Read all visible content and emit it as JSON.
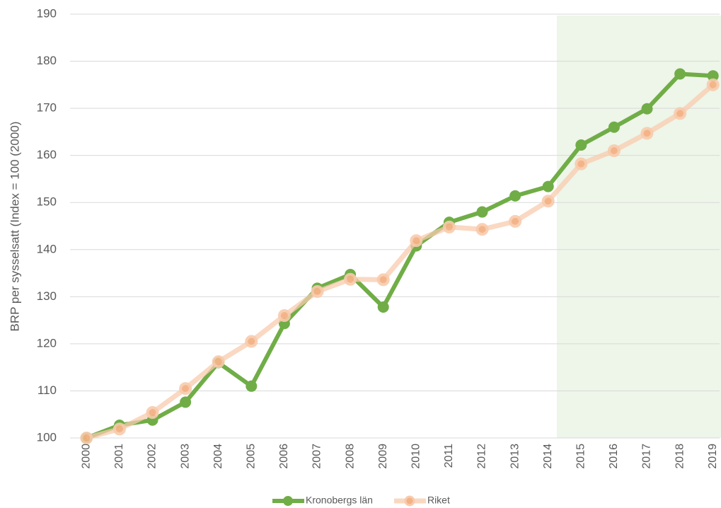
{
  "chart_data": {
    "type": "line",
    "y_label": "BRP per sysselsatt (Index = 100 (2000)",
    "categories": [
      "2000",
      "2001",
      "2002",
      "2003",
      "2004",
      "2005",
      "2006",
      "2007",
      "2008",
      "2009",
      "2010",
      "2011",
      "2012",
      "2013",
      "2014",
      "2015",
      "2016",
      "2017",
      "2018",
      "2019"
    ],
    "series": [
      {
        "name": "Kronobergs län",
        "color": "#70ad47",
        "values": [
          100,
          102.7,
          103.8,
          107.6,
          116,
          111,
          124.3,
          131.8,
          134.7,
          127.8,
          140.8,
          145.8,
          148,
          151.4,
          153.4,
          162.2,
          166,
          169.9,
          177.3,
          176.9
        ]
      },
      {
        "name": "Riket",
        "color": "#f4b183",
        "values": [
          100,
          101.9,
          105.4,
          110.5,
          116.2,
          120.5,
          126,
          131.1,
          133.7,
          133.6,
          141.9,
          144.8,
          144.3,
          146,
          150.3,
          158.2,
          161,
          164.7,
          168.9,
          175
        ]
      }
    ],
    "ylim": [
      100,
      190
    ],
    "yticks": [
      100,
      110,
      120,
      130,
      140,
      150,
      160,
      170,
      180,
      190
    ],
    "grid": true,
    "legend": "bottom"
  }
}
